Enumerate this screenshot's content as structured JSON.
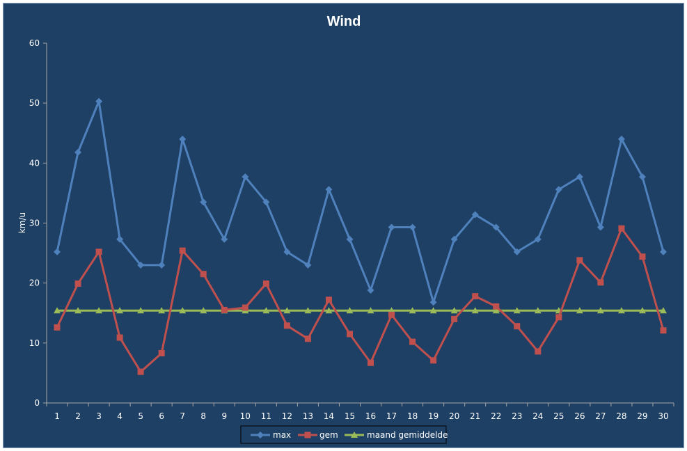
{
  "chart_data": {
    "type": "line",
    "title": "Wind",
    "xlabel": "",
    "ylabel": "km/u",
    "ylim": [
      0,
      60
    ],
    "yticks": [
      0,
      10,
      20,
      30,
      40,
      50,
      60
    ],
    "categories": [
      "1",
      "2",
      "3",
      "4",
      "5",
      "6",
      "7",
      "8",
      "9",
      "10",
      "11",
      "12",
      "13",
      "14",
      "15",
      "16",
      "17",
      "18",
      "19",
      "20",
      "21",
      "22",
      "23",
      "24",
      "25",
      "26",
      "27",
      "28",
      "29",
      "30"
    ],
    "grid": false,
    "legend_position": "bottom",
    "series": [
      {
        "name": "max",
        "color": "#4f81bd",
        "marker": "diamond",
        "values": [
          25.2,
          41.8,
          50.3,
          27.3,
          23.0,
          23.0,
          44.0,
          33.5,
          27.3,
          37.7,
          33.5,
          25.2,
          23.0,
          35.6,
          27.3,
          18.8,
          29.3,
          29.3,
          16.8,
          27.3,
          31.4,
          29.3,
          25.2,
          27.3,
          35.6,
          37.7,
          29.3,
          44.0,
          37.7,
          25.2
        ]
      },
      {
        "name": "gem",
        "color": "#c0504d",
        "marker": "square",
        "values": [
          12.6,
          19.9,
          25.2,
          10.9,
          5.2,
          8.3,
          25.4,
          21.5,
          15.5,
          15.9,
          19.9,
          12.9,
          10.7,
          17.2,
          11.5,
          6.7,
          14.7,
          10.2,
          7.1,
          14.0,
          17.8,
          16.1,
          12.8,
          8.6,
          14.3,
          23.8,
          20.1,
          29.1,
          24.4,
          12.1
        ]
      },
      {
        "name": "maand gemiddelde",
        "color": "#9bbb59",
        "marker": "triangle",
        "values": [
          15.4,
          15.4,
          15.4,
          15.4,
          15.4,
          15.4,
          15.4,
          15.4,
          15.4,
          15.4,
          15.4,
          15.4,
          15.4,
          15.4,
          15.4,
          15.4,
          15.4,
          15.4,
          15.4,
          15.4,
          15.4,
          15.4,
          15.4,
          15.4,
          15.4,
          15.4,
          15.4,
          15.4,
          15.4,
          15.4
        ]
      }
    ]
  }
}
